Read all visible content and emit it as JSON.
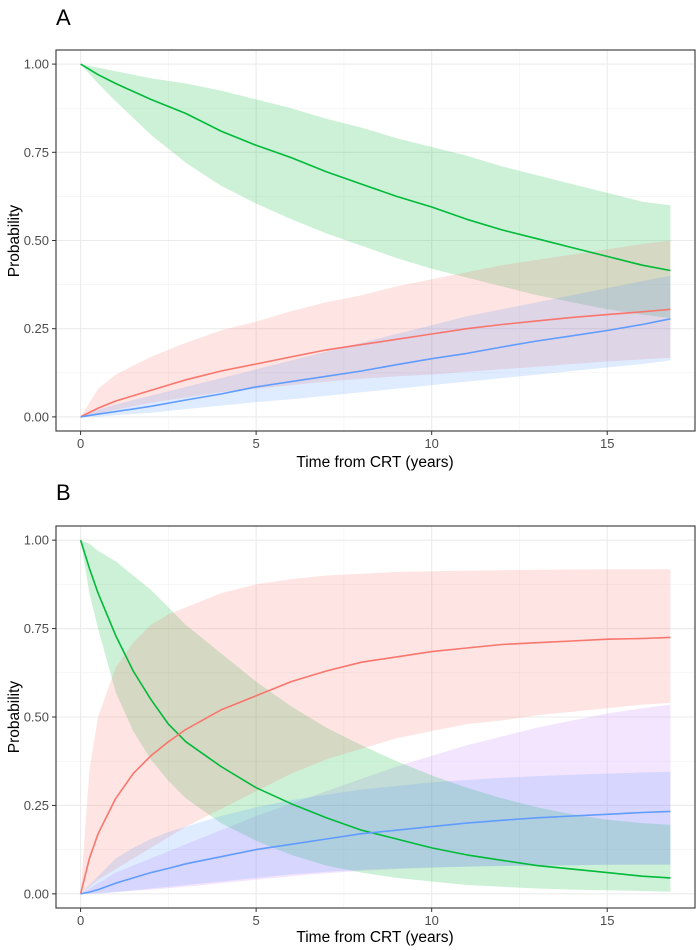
{
  "chart_data": [
    {
      "panel": "A",
      "type": "line",
      "xlabel": "Time from CRT (years)",
      "ylabel": "Probability",
      "xlim": [
        -0.7,
        17.5
      ],
      "ylim": [
        -0.04,
        1.04
      ],
      "xticks": [
        0,
        5,
        10,
        15
      ],
      "xtick_labels": [
        "0",
        "5",
        "10",
        "15"
      ],
      "yticks": [
        0,
        0.25,
        0.5,
        0.75,
        1.0
      ],
      "ytick_labels": [
        "0.00",
        "0.25",
        "0.50",
        "0.75",
        "1.00"
      ],
      "grid": true,
      "legend": "none",
      "series": [
        {
          "name": "green",
          "color": "#00ba38",
          "x": [
            0,
            0.5,
            1,
            2,
            3,
            4,
            5,
            6,
            7,
            8,
            9,
            10,
            11,
            12,
            13,
            14,
            15,
            16,
            16.8
          ],
          "y": [
            1.0,
            0.97,
            0.945,
            0.9,
            0.86,
            0.81,
            0.77,
            0.735,
            0.695,
            0.66,
            0.625,
            0.595,
            0.56,
            0.53,
            0.505,
            0.48,
            0.455,
            0.43,
            0.415
          ],
          "lower": [
            1.0,
            0.945,
            0.895,
            0.8,
            0.72,
            0.655,
            0.605,
            0.56,
            0.52,
            0.485,
            0.45,
            0.42,
            0.395,
            0.37,
            0.345,
            0.325,
            0.305,
            0.29,
            0.28
          ],
          "upper": [
            1.0,
            0.99,
            0.98,
            0.96,
            0.945,
            0.925,
            0.9,
            0.875,
            0.845,
            0.82,
            0.79,
            0.765,
            0.74,
            0.71,
            0.685,
            0.66,
            0.635,
            0.61,
            0.6
          ]
        },
        {
          "name": "red",
          "color": "#f8766d",
          "x": [
            0,
            0.5,
            1,
            2,
            3,
            4,
            5,
            6,
            7,
            8,
            9,
            10,
            11,
            12,
            13,
            14,
            15,
            16,
            16.8
          ],
          "y": [
            0,
            0.025,
            0.045,
            0.075,
            0.105,
            0.13,
            0.15,
            0.17,
            0.19,
            0.205,
            0.22,
            0.235,
            0.25,
            0.262,
            0.272,
            0.282,
            0.29,
            0.298,
            0.305
          ],
          "lower": [
            0,
            0.01,
            0.02,
            0.04,
            0.055,
            0.07,
            0.08,
            0.09,
            0.1,
            0.108,
            0.115,
            0.12,
            0.128,
            0.135,
            0.142,
            0.15,
            0.157,
            0.163,
            0.168
          ],
          "upper": [
            0,
            0.08,
            0.12,
            0.17,
            0.21,
            0.245,
            0.27,
            0.3,
            0.325,
            0.345,
            0.37,
            0.39,
            0.41,
            0.43,
            0.445,
            0.46,
            0.475,
            0.49,
            0.5
          ]
        },
        {
          "name": "blue",
          "color": "#619cff",
          "x": [
            0,
            0.5,
            1,
            2,
            3,
            4,
            5,
            6,
            7,
            8,
            9,
            10,
            11,
            12,
            13,
            14,
            15,
            16,
            16.8
          ],
          "y": [
            0,
            0.008,
            0.015,
            0.03,
            0.048,
            0.065,
            0.085,
            0.1,
            0.115,
            0.13,
            0.148,
            0.165,
            0.18,
            0.198,
            0.215,
            0.23,
            0.245,
            0.262,
            0.278
          ],
          "lower": [
            0,
            0.0,
            0.005,
            0.012,
            0.022,
            0.032,
            0.042,
            0.05,
            0.06,
            0.07,
            0.08,
            0.09,
            0.1,
            0.11,
            0.12,
            0.13,
            0.14,
            0.15,
            0.16
          ],
          "upper": [
            0,
            0.02,
            0.035,
            0.06,
            0.085,
            0.11,
            0.135,
            0.16,
            0.185,
            0.21,
            0.235,
            0.26,
            0.285,
            0.305,
            0.325,
            0.345,
            0.365,
            0.385,
            0.4
          ]
        }
      ]
    },
    {
      "panel": "B",
      "type": "line",
      "xlabel": "Time from CRT (years)",
      "ylabel": "Probability",
      "xlim": [
        -0.7,
        17.5
      ],
      "ylim": [
        -0.04,
        1.04
      ],
      "xticks": [
        0,
        5,
        10,
        15
      ],
      "xtick_labels": [
        "0",
        "5",
        "10",
        "15"
      ],
      "yticks": [
        0,
        0.25,
        0.5,
        0.75,
        1.0
      ],
      "ytick_labels": [
        "0.00",
        "0.25",
        "0.50",
        "0.75",
        "1.00"
      ],
      "grid": true,
      "legend": "none",
      "series": [
        {
          "name": "green",
          "color": "#00ba38",
          "x": [
            0,
            0.25,
            0.5,
            1,
            1.5,
            2,
            2.5,
            3,
            4,
            5,
            6,
            7,
            8,
            9,
            10,
            11,
            12,
            13,
            14,
            15,
            16,
            16.8
          ],
          "y": [
            1.0,
            0.92,
            0.85,
            0.73,
            0.63,
            0.55,
            0.48,
            0.43,
            0.36,
            0.3,
            0.255,
            0.215,
            0.18,
            0.155,
            0.13,
            0.11,
            0.095,
            0.08,
            0.07,
            0.06,
            0.05,
            0.045
          ],
          "lower": [
            1.0,
            0.85,
            0.75,
            0.57,
            0.46,
            0.38,
            0.32,
            0.27,
            0.2,
            0.15,
            0.11,
            0.08,
            0.06,
            0.045,
            0.035,
            0.025,
            0.02,
            0.015,
            0.012,
            0.01,
            0.008,
            0.006
          ],
          "upper": [
            1.0,
            0.99,
            0.97,
            0.94,
            0.9,
            0.86,
            0.81,
            0.76,
            0.68,
            0.6,
            0.53,
            0.47,
            0.42,
            0.375,
            0.335,
            0.3,
            0.27,
            0.245,
            0.225,
            0.21,
            0.2,
            0.195
          ]
        },
        {
          "name": "red",
          "color": "#f8766d",
          "x": [
            0,
            0.25,
            0.5,
            1,
            1.5,
            2,
            2.5,
            3,
            4,
            5,
            6,
            7,
            8,
            9,
            10,
            11,
            12,
            13,
            14,
            15,
            16,
            16.8
          ],
          "y": [
            0,
            0.1,
            0.17,
            0.27,
            0.34,
            0.39,
            0.43,
            0.465,
            0.52,
            0.56,
            0.6,
            0.63,
            0.655,
            0.67,
            0.685,
            0.695,
            0.705,
            0.71,
            0.715,
            0.72,
            0.722,
            0.725
          ],
          "lower": [
            0,
            0.02,
            0.04,
            0.07,
            0.1,
            0.13,
            0.16,
            0.19,
            0.24,
            0.29,
            0.34,
            0.38,
            0.41,
            0.44,
            0.46,
            0.48,
            0.49,
            0.505,
            0.515,
            0.525,
            0.535,
            0.54
          ],
          "upper": [
            0,
            0.35,
            0.5,
            0.64,
            0.71,
            0.76,
            0.79,
            0.81,
            0.85,
            0.875,
            0.89,
            0.9,
            0.905,
            0.91,
            0.912,
            0.914,
            0.915,
            0.916,
            0.917,
            0.918,
            0.918,
            0.918
          ]
        },
        {
          "name": "blue",
          "color": "#619cff",
          "x": [
            0,
            0.25,
            0.5,
            1,
            1.5,
            2,
            2.5,
            3,
            4,
            5,
            6,
            7,
            8,
            9,
            10,
            11,
            12,
            13,
            14,
            15,
            16,
            16.8
          ],
          "y": [
            0,
            0.005,
            0.012,
            0.03,
            0.045,
            0.06,
            0.072,
            0.085,
            0.105,
            0.125,
            0.14,
            0.155,
            0.17,
            0.18,
            0.19,
            0.2,
            0.208,
            0.215,
            0.22,
            0.225,
            0.23,
            0.233
          ],
          "lower": [
            0,
            0.0,
            0.0,
            0.005,
            0.01,
            0.015,
            0.02,
            0.025,
            0.035,
            0.045,
            0.055,
            0.062,
            0.068,
            0.072,
            0.075,
            0.077,
            0.079,
            0.08,
            0.081,
            0.082,
            0.083,
            0.083
          ],
          "upper": [
            0,
            0.025,
            0.05,
            0.1,
            0.13,
            0.155,
            0.175,
            0.19,
            0.22,
            0.245,
            0.265,
            0.28,
            0.295,
            0.305,
            0.315,
            0.322,
            0.328,
            0.333,
            0.337,
            0.34,
            0.343,
            0.345
          ]
        }
      ],
      "extra_bands": [
        {
          "name": "purple",
          "color": "#c77cff",
          "x": [
            0,
            1,
            2,
            3,
            4,
            5,
            6,
            7,
            8,
            9,
            10,
            11,
            12,
            13,
            14,
            15,
            16,
            16.8
          ],
          "lower": [
            0,
            0.005,
            0.012,
            0.02,
            0.03,
            0.04,
            0.05,
            0.058,
            0.065,
            0.07,
            0.074,
            0.077,
            0.079,
            0.08,
            0.081,
            0.082,
            0.082,
            0.082
          ],
          "upper": [
            0,
            0.06,
            0.1,
            0.14,
            0.18,
            0.22,
            0.255,
            0.29,
            0.325,
            0.36,
            0.39,
            0.42,
            0.445,
            0.47,
            0.49,
            0.51,
            0.525,
            0.535
          ]
        }
      ]
    }
  ]
}
